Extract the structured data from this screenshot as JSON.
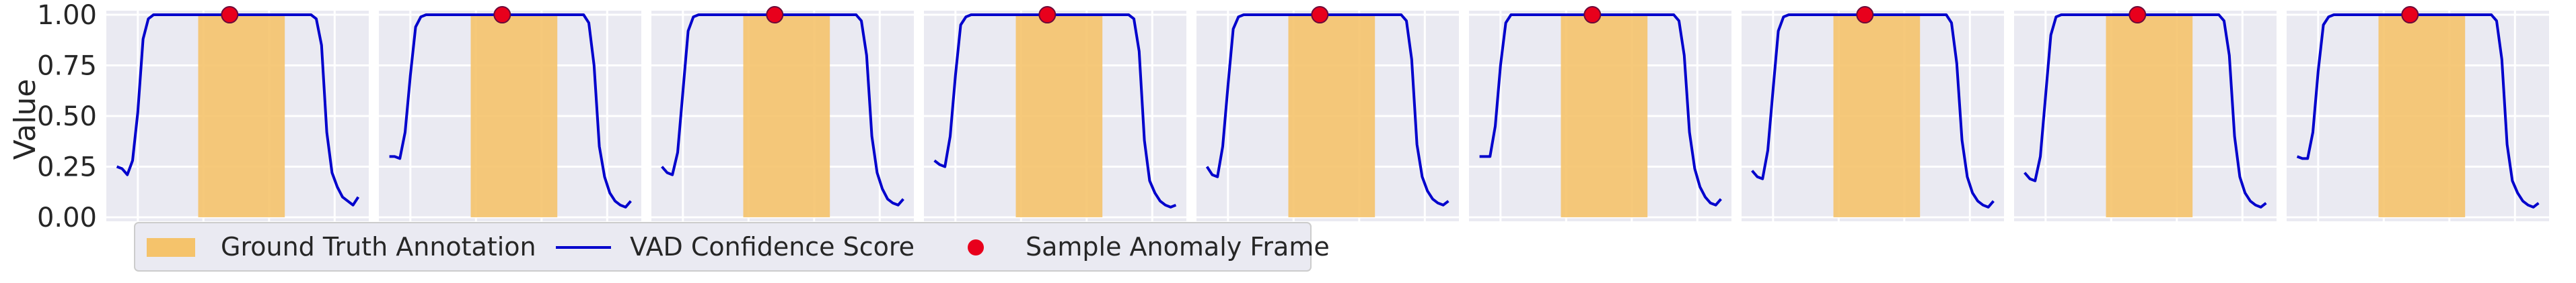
{
  "chart_data": {
    "type": "line",
    "ylabel": "Value",
    "ylim": [
      -0.02,
      1.02
    ],
    "yticks": [
      0.0,
      0.25,
      0.5,
      0.75,
      1.0
    ],
    "ytick_labels": [
      "0.00",
      "0.25",
      "0.50",
      "0.75",
      "1.00"
    ],
    "grid": true,
    "panel_count": 9,
    "background_color": "#eaeaf2",
    "legend": {
      "placement": "lower-left",
      "entries": [
        {
          "label": "Ground Truth Annotation",
          "kind": "patch",
          "color": "#f5c36b"
        },
        {
          "label": "VAD Confidence Score",
          "kind": "line",
          "color": "#0000cc"
        },
        {
          "label": "Sample Anomaly Frame",
          "kind": "marker",
          "color": "#e8001c"
        }
      ]
    },
    "annotation_span_fraction": [
      0.35,
      0.68
    ],
    "anomaly_frame": {
      "x_fraction": 0.47,
      "y": 1.0
    },
    "panels": [
      {
        "y": [
          0.25,
          0.24,
          0.21,
          0.28,
          0.52,
          0.88,
          0.98,
          1.0,
          1.0,
          1.0,
          1.0,
          1.0,
          1.0,
          1.0,
          1.0,
          1.0,
          1.0,
          1.0,
          1.0,
          1.0,
          1.0,
          1.0,
          1.0,
          1.0,
          1.0,
          1.0,
          1.0,
          1.0,
          1.0,
          1.0,
          1.0,
          1.0,
          1.0,
          1.0,
          1.0,
          1.0,
          1.0,
          1.0,
          0.98,
          0.85,
          0.42,
          0.22,
          0.15,
          0.1,
          0.08,
          0.06,
          0.1
        ]
      },
      {
        "y": [
          0.3,
          0.3,
          0.29,
          0.42,
          0.7,
          0.94,
          0.99,
          1.0,
          1.0,
          1.0,
          1.0,
          1.0,
          1.0,
          1.0,
          1.0,
          1.0,
          1.0,
          1.0,
          1.0,
          1.0,
          1.0,
          1.0,
          1.0,
          1.0,
          1.0,
          1.0,
          1.0,
          1.0,
          1.0,
          1.0,
          1.0,
          1.0,
          1.0,
          1.0,
          1.0,
          1.0,
          1.0,
          1.0,
          0.96,
          0.75,
          0.35,
          0.2,
          0.12,
          0.08,
          0.06,
          0.05,
          0.08
        ]
      },
      {
        "y": [
          0.25,
          0.22,
          0.21,
          0.32,
          0.62,
          0.92,
          0.99,
          1.0,
          1.0,
          1.0,
          1.0,
          1.0,
          1.0,
          1.0,
          1.0,
          1.0,
          1.0,
          1.0,
          1.0,
          1.0,
          1.0,
          1.0,
          1.0,
          1.0,
          1.0,
          1.0,
          1.0,
          1.0,
          1.0,
          1.0,
          1.0,
          1.0,
          1.0,
          1.0,
          1.0,
          1.0,
          1.0,
          1.0,
          0.97,
          0.8,
          0.4,
          0.22,
          0.14,
          0.09,
          0.07,
          0.06,
          0.09
        ]
      },
      {
        "y": [
          0.28,
          0.26,
          0.25,
          0.4,
          0.7,
          0.95,
          0.99,
          1.0,
          1.0,
          1.0,
          1.0,
          1.0,
          1.0,
          1.0,
          1.0,
          1.0,
          1.0,
          1.0,
          1.0,
          1.0,
          1.0,
          1.0,
          1.0,
          1.0,
          1.0,
          1.0,
          1.0,
          1.0,
          1.0,
          1.0,
          1.0,
          1.0,
          1.0,
          1.0,
          1.0,
          1.0,
          1.0,
          1.0,
          0.98,
          0.82,
          0.38,
          0.18,
          0.12,
          0.08,
          0.06,
          0.05,
          0.06
        ]
      },
      {
        "y": [
          0.25,
          0.21,
          0.2,
          0.35,
          0.65,
          0.93,
          0.99,
          1.0,
          1.0,
          1.0,
          1.0,
          1.0,
          1.0,
          1.0,
          1.0,
          1.0,
          1.0,
          1.0,
          1.0,
          1.0,
          1.0,
          1.0,
          1.0,
          1.0,
          1.0,
          1.0,
          1.0,
          1.0,
          1.0,
          1.0,
          1.0,
          1.0,
          1.0,
          1.0,
          1.0,
          1.0,
          1.0,
          1.0,
          0.97,
          0.78,
          0.36,
          0.2,
          0.13,
          0.09,
          0.07,
          0.06,
          0.08
        ]
      },
      {
        "y": [
          0.3,
          0.3,
          0.3,
          0.45,
          0.75,
          0.96,
          1.0,
          1.0,
          1.0,
          1.0,
          1.0,
          1.0,
          1.0,
          1.0,
          1.0,
          1.0,
          1.0,
          1.0,
          1.0,
          1.0,
          1.0,
          1.0,
          1.0,
          1.0,
          1.0,
          1.0,
          1.0,
          1.0,
          1.0,
          1.0,
          1.0,
          1.0,
          1.0,
          1.0,
          1.0,
          1.0,
          1.0,
          1.0,
          0.97,
          0.8,
          0.42,
          0.24,
          0.15,
          0.1,
          0.07,
          0.06,
          0.09
        ]
      },
      {
        "y": [
          0.23,
          0.2,
          0.19,
          0.33,
          0.63,
          0.92,
          0.99,
          1.0,
          1.0,
          1.0,
          1.0,
          1.0,
          1.0,
          1.0,
          1.0,
          1.0,
          1.0,
          1.0,
          1.0,
          1.0,
          1.0,
          1.0,
          1.0,
          1.0,
          1.0,
          1.0,
          1.0,
          1.0,
          1.0,
          1.0,
          1.0,
          1.0,
          1.0,
          1.0,
          1.0,
          1.0,
          1.0,
          1.0,
          0.96,
          0.76,
          0.38,
          0.2,
          0.12,
          0.08,
          0.06,
          0.05,
          0.08
        ]
      },
      {
        "y": [
          0.22,
          0.19,
          0.18,
          0.3,
          0.6,
          0.9,
          0.99,
          1.0,
          1.0,
          1.0,
          1.0,
          1.0,
          1.0,
          1.0,
          1.0,
          1.0,
          1.0,
          1.0,
          1.0,
          1.0,
          1.0,
          1.0,
          1.0,
          1.0,
          1.0,
          1.0,
          1.0,
          1.0,
          1.0,
          1.0,
          1.0,
          1.0,
          1.0,
          1.0,
          1.0,
          1.0,
          1.0,
          1.0,
          0.97,
          0.8,
          0.4,
          0.2,
          0.12,
          0.08,
          0.06,
          0.05,
          0.07
        ]
      },
      {
        "y": [
          0.3,
          0.29,
          0.29,
          0.42,
          0.72,
          0.95,
          0.99,
          1.0,
          1.0,
          1.0,
          1.0,
          1.0,
          1.0,
          1.0,
          1.0,
          1.0,
          1.0,
          1.0,
          1.0,
          1.0,
          1.0,
          1.0,
          1.0,
          1.0,
          1.0,
          1.0,
          1.0,
          1.0,
          1.0,
          1.0,
          1.0,
          1.0,
          1.0,
          1.0,
          1.0,
          1.0,
          1.0,
          1.0,
          0.97,
          0.78,
          0.36,
          0.18,
          0.12,
          0.08,
          0.06,
          0.05,
          0.07
        ]
      }
    ]
  }
}
